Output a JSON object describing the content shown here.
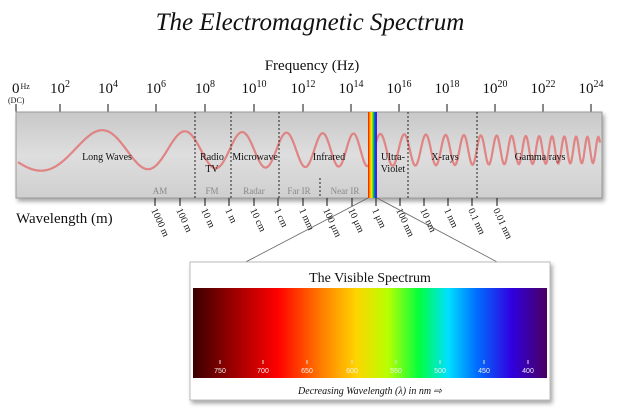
{
  "title": "The Electromagnetic Spectrum",
  "frequency_axis": {
    "label": "Frequency (Hz)",
    "ticks": [
      {
        "base": "0",
        "sup": "",
        "suffix": "Hz",
        "note": "(DC)"
      },
      {
        "base": "10",
        "sup": "2"
      },
      {
        "base": "10",
        "sup": "4"
      },
      {
        "base": "10",
        "sup": "6"
      },
      {
        "base": "10",
        "sup": "8"
      },
      {
        "base": "10",
        "sup": "10"
      },
      {
        "base": "10",
        "sup": "12"
      },
      {
        "base": "10",
        "sup": "14"
      },
      {
        "base": "10",
        "sup": "16"
      },
      {
        "base": "10",
        "sup": "18"
      },
      {
        "base": "10",
        "sup": "20"
      },
      {
        "base": "10",
        "sup": "22"
      },
      {
        "base": "10",
        "sup": "24"
      }
    ]
  },
  "regions": [
    {
      "name": "Long Waves"
    },
    {
      "name": "Radio",
      "name2": "TV"
    },
    {
      "name": "Microwave"
    },
    {
      "name": "Infrared"
    },
    {
      "name": "Ultra-",
      "name2": "Violet"
    },
    {
      "name": "X-rays"
    },
    {
      "name": "Gamma rays"
    }
  ],
  "sub_bands": [
    "AM",
    "FM",
    "Radar",
    "Far IR",
    "Near IR"
  ],
  "wavelength_axis": {
    "label": "Wavelength (m)",
    "ticks": [
      "1000 m",
      "100 m",
      "10 m",
      "1 m",
      "10 cm",
      "1 cm",
      "1 mm",
      "100 μm",
      "10 μm",
      "1 μm",
      "100 nm",
      "10 nm",
      "1 nm",
      "0.1 nm",
      "0.01 nm"
    ]
  },
  "visible_spectrum": {
    "title": "The Visible Spectrum",
    "ticks": [
      "750",
      "700",
      "650",
      "600",
      "550",
      "500",
      "450",
      "400"
    ],
    "caption": "Decreasing Wavelength (λ) in nm ⇨"
  }
}
